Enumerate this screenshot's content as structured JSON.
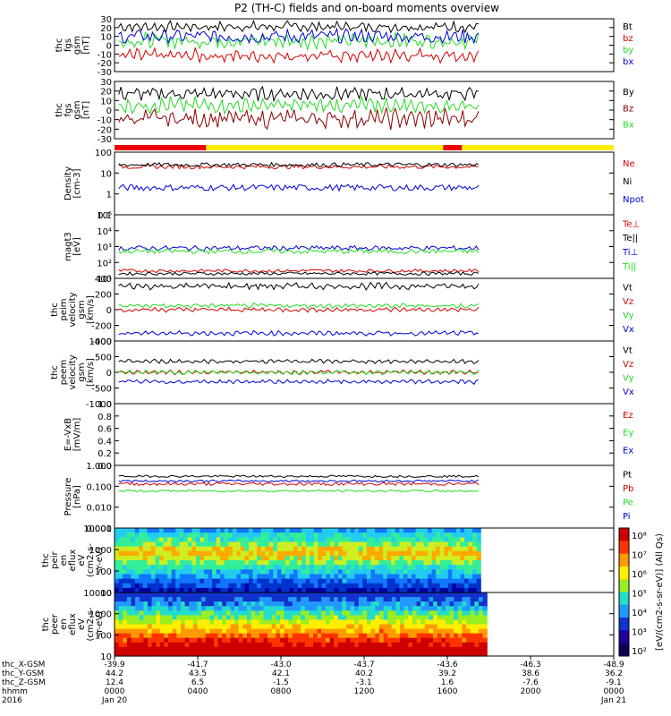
{
  "chart_data": {
    "type": "line",
    "title": "P2 (TH-C) fields and on-board moments overview",
    "time_axis": {
      "ticks_hhmm": [
        "0000",
        "0400",
        "0800",
        "1200",
        "1600",
        "2000",
        "0000"
      ],
      "date_labels": [
        "Jan 20",
        "",
        "",
        "",
        "",
        "",
        "Jan 21"
      ],
      "row_labels": [
        "thc_X-GSM",
        "thc_Y-GSM",
        "thc_Z-GSM",
        "hhmm",
        "2016"
      ],
      "x_gsm": [
        "-39.9",
        "-41.7",
        "-43.0",
        "-43.7",
        "-43.6",
        "-46.3",
        "-48.9"
      ],
      "y_gsm": [
        "44.2",
        "43.5",
        "42.1",
        "40.2",
        "39.2",
        "38.6",
        "36.2"
      ],
      "z_gsm": [
        "12.4",
        "6.5",
        "-1.5",
        "-3.1",
        "1.6",
        "-7.6",
        "-9.1"
      ],
      "data_end_hour": 17.5,
      "range_hours": [
        0,
        24
      ]
    },
    "panels": [
      {
        "ylabel": [
          "thc",
          "fgs",
          "gsm",
          "[nT]"
        ],
        "scale": "linear",
        "ylim": [
          -30,
          30
        ],
        "ticks": [
          "30",
          "20",
          "10",
          "0",
          "-10",
          "-20",
          "-30"
        ],
        "series": [
          {
            "name": "Bt",
            "color": "#000000",
            "base": 21,
            "amp": 4,
            "osc": 3
          },
          {
            "name": "bz",
            "color": "#d40000",
            "base": -12,
            "amp": 5,
            "osc": 4
          },
          {
            "name": "by",
            "color": "#22dd22",
            "base": 5,
            "amp": 6,
            "osc": 4
          },
          {
            "name": "bx",
            "color": "#0000dd",
            "base": 10,
            "amp": 7,
            "osc": 2
          }
        ]
      },
      {
        "ylabel": [
          "thc",
          "fgs",
          "gsm",
          "[nT]"
        ],
        "scale": "linear",
        "ylim": [
          -30,
          30
        ],
        "ticks": [
          "30",
          "20",
          "10",
          "0",
          "-10",
          "-20",
          "-30"
        ],
        "series": [
          {
            "name": "By",
            "color": "#000000",
            "base": 17,
            "amp": 5,
            "osc": 3
          },
          {
            "name": "Bz",
            "color": "#8b0000",
            "base": -9,
            "amp": 7,
            "osc": 5
          },
          {
            "name": "Bx",
            "color": "#22dd22",
            "base": 5,
            "amp": 5,
            "osc": 5
          }
        ]
      },
      {
        "ylabel": [
          "Density",
          "[cm-3]"
        ],
        "scale": "log",
        "ylim": [
          0.1,
          100
        ],
        "ticks": [
          "100",
          "10",
          "1",
          "0.1"
        ],
        "series": [
          {
            "name": "Ne",
            "color": "#d40000",
            "base": 20,
            "amp": 0.2,
            "osc": 0.1
          },
          {
            "name": "Ni",
            "color": "#000000",
            "base": 25,
            "amp": 0.2,
            "osc": 0.1
          },
          {
            "name": "Npot",
            "color": "#0000dd",
            "base": 2,
            "amp": 0.3,
            "osc": 0.2
          }
        ]
      },
      {
        "ylabel": [
          "magt3",
          "[eV]"
        ],
        "scale": "log",
        "ylim": [
          10,
          100000
        ],
        "ticks": [
          "10⁵",
          "10⁴",
          "10³",
          "10²",
          "10¹"
        ],
        "series": [
          {
            "name": "Te⊥",
            "color": "#d40000",
            "base": 30,
            "amp": 0.2,
            "osc": 0.1
          },
          {
            "name": "Te||",
            "color": "#000000",
            "base": 20,
            "amp": 0.2,
            "osc": 0.1
          },
          {
            "name": "Ti⊥",
            "color": "#0000dd",
            "base": 800,
            "amp": 0.3,
            "osc": 0.2
          },
          {
            "name": "Ti||",
            "color": "#22dd22",
            "base": 500,
            "amp": 0.3,
            "osc": 0.2
          }
        ]
      },
      {
        "ylabel": [
          "thc",
          "peim",
          "velocity",
          "gsm",
          "[km/s]"
        ],
        "scale": "linear",
        "ylim": [
          -400,
          400
        ],
        "ticks": [
          "400",
          "200",
          "0",
          "-200",
          "-400"
        ],
        "series": [
          {
            "name": "Vt",
            "color": "#000000",
            "base": 300,
            "amp": 30,
            "osc": 20
          },
          {
            "name": "Vz",
            "color": "#d40000",
            "base": 0,
            "amp": 20,
            "osc": 15
          },
          {
            "name": "Vy",
            "color": "#22dd22",
            "base": 50,
            "amp": 20,
            "osc": 15
          },
          {
            "name": "Vx",
            "color": "#0000dd",
            "base": -300,
            "amp": 20,
            "osc": 15
          }
        ]
      },
      {
        "ylabel": [
          "thc",
          "peem",
          "velocity",
          "gsm",
          "[km/s]"
        ],
        "scale": "linear",
        "ylim": [
          -1000,
          1000
        ],
        "ticks": [
          "1000",
          "500",
          "0",
          "-500",
          "-1000"
        ],
        "series": [
          {
            "name": "Vt",
            "color": "#000000",
            "base": 350,
            "amp": 40,
            "osc": 40
          },
          {
            "name": "Vz",
            "color": "#d40000",
            "base": 0,
            "amp": 40,
            "osc": 40
          },
          {
            "name": "Vy",
            "color": "#22dd22",
            "base": 0,
            "amp": 40,
            "osc": 40
          },
          {
            "name": "Vx",
            "color": "#0000dd",
            "base": -300,
            "amp": 40,
            "osc": 40
          }
        ]
      },
      {
        "ylabel": [
          "E=-VxB",
          "[mV/m]"
        ],
        "scale": "linear",
        "ylim": [
          0,
          1
        ],
        "ticks": [
          "1.0",
          "0.8",
          "0.6",
          "0.4",
          "0.2",
          "0.0"
        ],
        "series": [
          {
            "name": "Ez",
            "color": "#d40000"
          },
          {
            "name": "Ey",
            "color": "#22dd22"
          },
          {
            "name": "Ex",
            "color": "#0000dd"
          }
        ]
      },
      {
        "ylabel": [
          "Pressure",
          "[nPa]"
        ],
        "scale": "log",
        "ylim": [
          0.001,
          1
        ],
        "ticks": [
          "1.000",
          "0.100",
          "0.010",
          "0.001"
        ],
        "series": [
          {
            "name": "Pt",
            "color": "#000000",
            "base": 0.3,
            "amp": 0.1,
            "osc": 0.05
          },
          {
            "name": "Pb",
            "color": "#d40000",
            "base": 0.13,
            "amp": 0.15,
            "osc": 0.1
          },
          {
            "name": "Pe",
            "color": "#22dd22",
            "base": 0.06,
            "amp": 0.1,
            "osc": 0.05
          },
          {
            "name": "Pi",
            "color": "#0000dd",
            "base": 0.18,
            "amp": 0.1,
            "osc": 0.05
          }
        ]
      },
      {
        "ylabel": [
          "thc",
          "peir",
          "en",
          "eflux",
          "eV",
          "(cm2-s-",
          "sr-eV)"
        ],
        "scale": "log",
        "ylim": [
          5,
          20000
        ],
        "ticks": [
          "10000",
          "1000",
          "100",
          "10"
        ],
        "spectrogram": "ion"
      },
      {
        "ylabel": [
          "thc",
          "peer",
          "en",
          "eflux",
          "eV",
          "(cm2-s-",
          "sr-eV)"
        ],
        "scale": "log",
        "ylim": [
          5,
          20000
        ],
        "ticks": [
          "10000",
          "1000",
          "100",
          "10"
        ],
        "spectrogram": "electron"
      }
    ],
    "colorbar": {
      "label": "[eV/(cm2-s-sr-eV)] (All Qs)",
      "ticks": [
        "10⁸",
        "10⁷",
        "10⁶",
        "10⁵",
        "10⁴",
        "10³",
        "10²"
      ]
    },
    "mode_bar": {
      "colors": [
        "#ee0000",
        "#ffee00"
      ],
      "red_segments": [
        [
          0,
          4.4
        ],
        [
          15.8,
          16.7
        ]
      ]
    }
  }
}
